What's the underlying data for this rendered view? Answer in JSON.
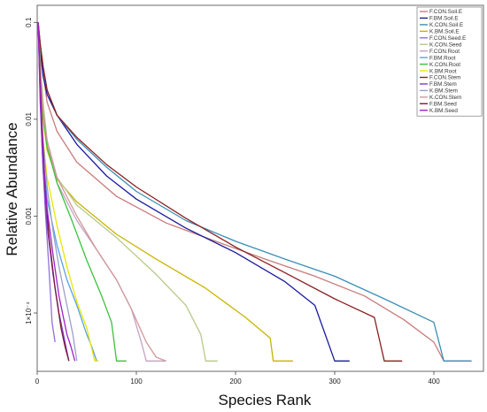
{
  "chart_data": {
    "type": "line",
    "xlabel": "Species Rank",
    "ylabel": "Relative Abundance",
    "x_scale": "linear",
    "y_scale": "log",
    "xlim": [
      0,
      450
    ],
    "ylim": [
      2.5e-05,
      0.15
    ],
    "x_ticks": [
      {
        "value": 0,
        "label": "0"
      },
      {
        "value": 100,
        "label": "100"
      },
      {
        "value": 200,
        "label": "200"
      },
      {
        "value": 300,
        "label": "300"
      },
      {
        "value": 400,
        "label": "400"
      }
    ],
    "y_ticks": [
      {
        "value": 0.1,
        "label": "0.1"
      },
      {
        "value": 0.01,
        "label": "0.01"
      },
      {
        "value": 0.001,
        "label": "0.001"
      },
      {
        "value": 0.0001,
        "label": "1×10⁻⁴"
      }
    ],
    "grid": false,
    "legend_position": "top-right",
    "series": [
      {
        "name": "F.CON.Soil.E",
        "color": "#c97b7b",
        "points": [
          [
            1,
            0.1
          ],
          [
            3,
            0.06
          ],
          [
            6,
            0.03
          ],
          [
            10,
            0.015
          ],
          [
            20,
            0.0075
          ],
          [
            40,
            0.0036
          ],
          [
            80,
            0.0016
          ],
          [
            130,
            0.00085
          ],
          [
            180,
            0.00055
          ],
          [
            230,
            0.00036
          ],
          [
            280,
            0.00024
          ],
          [
            330,
            0.00015
          ],
          [
            370,
            8.5e-05
          ],
          [
            400,
            5e-05
          ],
          [
            410,
            3.2e-05
          ],
          [
            437,
            3.2e-05
          ]
        ]
      },
      {
        "name": "F.BM.Soil.E",
        "color": "#1a1aa0",
        "points": [
          [
            1,
            0.1
          ],
          [
            3,
            0.05
          ],
          [
            6,
            0.028
          ],
          [
            10,
            0.018
          ],
          [
            20,
            0.011
          ],
          [
            40,
            0.0055
          ],
          [
            70,
            0.0026
          ],
          [
            100,
            0.0015
          ],
          [
            150,
            0.00075
          ],
          [
            200,
            0.00042
          ],
          [
            250,
            0.00021
          ],
          [
            280,
            0.00012
          ],
          [
            300,
            3.2e-05
          ],
          [
            315,
            3.2e-05
          ]
        ]
      },
      {
        "name": "K.CON.Soil.E",
        "color": "#3a8fb5",
        "points": [
          [
            1,
            0.1
          ],
          [
            3,
            0.06
          ],
          [
            6,
            0.035
          ],
          [
            10,
            0.02
          ],
          [
            20,
            0.011
          ],
          [
            40,
            0.0062
          ],
          [
            70,
            0.0032
          ],
          [
            100,
            0.0018
          ],
          [
            150,
            0.0009
          ],
          [
            200,
            0.00055
          ],
          [
            250,
            0.00036
          ],
          [
            300,
            0.00024
          ],
          [
            350,
            0.00014
          ],
          [
            400,
            8e-05
          ],
          [
            410,
            3.2e-05
          ],
          [
            438,
            3.2e-05
          ]
        ]
      },
      {
        "name": "K.BM.Soil.E",
        "color": "#c8b400",
        "points": [
          [
            1,
            0.1
          ],
          [
            3,
            0.025
          ],
          [
            6,
            0.01
          ],
          [
            10,
            0.0048
          ],
          [
            20,
            0.0024
          ],
          [
            40,
            0.0014
          ],
          [
            80,
            0.00065
          ],
          [
            120,
            0.00036
          ],
          [
            170,
            0.00018
          ],
          [
            210,
            9e-05
          ],
          [
            235,
            5.5e-05
          ],
          [
            238,
            3.2e-05
          ],
          [
            258,
            3.2e-05
          ]
        ]
      },
      {
        "name": "F.CON.Seed.E",
        "color": "#9370db",
        "points": [
          [
            1,
            0.1
          ],
          [
            3,
            0.02
          ],
          [
            5,
            0.005
          ],
          [
            8,
            0.0012
          ],
          [
            12,
            0.00028
          ],
          [
            15,
            8e-05
          ],
          [
            18,
            5e-05
          ]
        ]
      },
      {
        "name": "K.CON.Seed",
        "color": "#b7c98a",
        "points": [
          [
            1,
            0.1
          ],
          [
            3,
            0.04
          ],
          [
            6,
            0.015
          ],
          [
            10,
            0.006
          ],
          [
            20,
            0.0025
          ],
          [
            40,
            0.0013
          ],
          [
            80,
            0.0006
          ],
          [
            120,
            0.00025
          ],
          [
            150,
            0.00012
          ],
          [
            165,
            6e-05
          ],
          [
            170,
            3.2e-05
          ],
          [
            182,
            3.2e-05
          ]
        ]
      },
      {
        "name": "F.CON.Root",
        "color": "#c4a2c4",
        "points": [
          [
            1,
            0.1
          ],
          [
            3,
            0.03
          ],
          [
            6,
            0.012
          ],
          [
            10,
            0.006
          ],
          [
            20,
            0.0022
          ],
          [
            40,
            0.0009
          ],
          [
            60,
            0.00045
          ],
          [
            80,
            0.00022
          ],
          [
            95,
            0.00011
          ],
          [
            105,
            5e-05
          ],
          [
            110,
            3.2e-05
          ],
          [
            130,
            3.2e-05
          ]
        ]
      },
      {
        "name": "F.BM.Root",
        "color": "#5aa0e8",
        "points": [
          [
            1,
            0.1
          ],
          [
            3,
            0.02
          ],
          [
            6,
            0.004
          ],
          [
            10,
            0.0015
          ],
          [
            20,
            0.0005
          ],
          [
            30,
            0.00022
          ],
          [
            40,
            0.00012
          ],
          [
            50,
            6e-05
          ],
          [
            55,
            4.5e-05
          ],
          [
            60,
            3.2e-05
          ]
        ]
      },
      {
        "name": "K.CON.Root",
        "color": "#3cc23c",
        "points": [
          [
            1,
            0.1
          ],
          [
            3,
            0.03
          ],
          [
            6,
            0.011
          ],
          [
            10,
            0.0052
          ],
          [
            20,
            0.0022
          ],
          [
            35,
            0.0009
          ],
          [
            50,
            0.00035
          ],
          [
            65,
            0.00015
          ],
          [
            75,
            8e-05
          ],
          [
            80,
            3.2e-05
          ],
          [
            90,
            3.2e-05
          ]
        ]
      },
      {
        "name": "K.BM.Root",
        "color": "#e8e800",
        "points": [
          [
            1,
            0.1
          ],
          [
            3,
            0.02
          ],
          [
            6,
            0.006
          ],
          [
            10,
            0.0025
          ],
          [
            20,
            0.0008
          ],
          [
            30,
            0.0003
          ],
          [
            40,
            0.00013
          ],
          [
            50,
            7e-05
          ],
          [
            58,
            3.2e-05
          ],
          [
            62,
            3.2e-05
          ]
        ]
      },
      {
        "name": "F.CON.Stem",
        "color": "#8a2020",
        "points": [
          [
            1,
            0.1
          ],
          [
            3,
            0.06
          ],
          [
            6,
            0.035
          ],
          [
            10,
            0.02
          ],
          [
            20,
            0.011
          ],
          [
            40,
            0.0065
          ],
          [
            70,
            0.0034
          ],
          [
            100,
            0.002
          ],
          [
            150,
            0.00095
          ],
          [
            200,
            0.00048
          ],
          [
            250,
            0.00026
          ],
          [
            300,
            0.00014
          ],
          [
            340,
            9e-05
          ],
          [
            350,
            3.2e-05
          ],
          [
            368,
            3.2e-05
          ]
        ]
      },
      {
        "name": "F.BM.Stem",
        "color": "#7b3fc4",
        "points": [
          [
            1,
            0.1
          ],
          [
            3,
            0.015
          ],
          [
            6,
            0.003
          ],
          [
            10,
            0.0008
          ],
          [
            16,
            0.00025
          ],
          [
            22,
            0.0001
          ],
          [
            28,
            5e-05
          ],
          [
            32,
            3.2e-05
          ]
        ]
      },
      {
        "name": "K.BM.Stem",
        "color": "#9aa0c8",
        "points": [
          [
            1,
            0.1
          ],
          [
            3,
            0.02
          ],
          [
            6,
            0.006
          ],
          [
            10,
            0.002
          ],
          [
            16,
            0.0007
          ],
          [
            22,
            0.0003
          ],
          [
            30,
            0.00012
          ],
          [
            36,
            6e-05
          ],
          [
            40,
            3.2e-05
          ]
        ]
      },
      {
        "name": "K.CON.Stem",
        "color": "#d09898",
        "points": [
          [
            1,
            0.1
          ],
          [
            3,
            0.03
          ],
          [
            6,
            0.012
          ],
          [
            10,
            0.006
          ],
          [
            20,
            0.0025
          ],
          [
            40,
            0.001
          ],
          [
            60,
            0.00045
          ],
          [
            80,
            0.00022
          ],
          [
            95,
            0.00011
          ],
          [
            110,
            5e-05
          ],
          [
            120,
            3.5e-05
          ],
          [
            130,
            3.2e-05
          ]
        ]
      },
      {
        "name": "F.BM.Seed",
        "color": "#7a1a3c",
        "points": [
          [
            1,
            0.1
          ],
          [
            3,
            0.025
          ],
          [
            5,
            0.008
          ],
          [
            8,
            0.002
          ],
          [
            12,
            0.0006
          ],
          [
            18,
            0.00018
          ],
          [
            24,
            7e-05
          ],
          [
            28,
            4.5e-05
          ],
          [
            32,
            3.2e-05
          ]
        ]
      },
      {
        "name": "K.BM.Seed",
        "color": "#a020c8",
        "points": [
          [
            1,
            0.1
          ],
          [
            3,
            0.018
          ],
          [
            6,
            0.004
          ],
          [
            10,
            0.0012
          ],
          [
            16,
            0.0004
          ],
          [
            22,
            0.00015
          ],
          [
            30,
            6e-05
          ],
          [
            34,
            4.5e-05
          ],
          [
            38,
            3.2e-05
          ]
        ]
      }
    ]
  }
}
